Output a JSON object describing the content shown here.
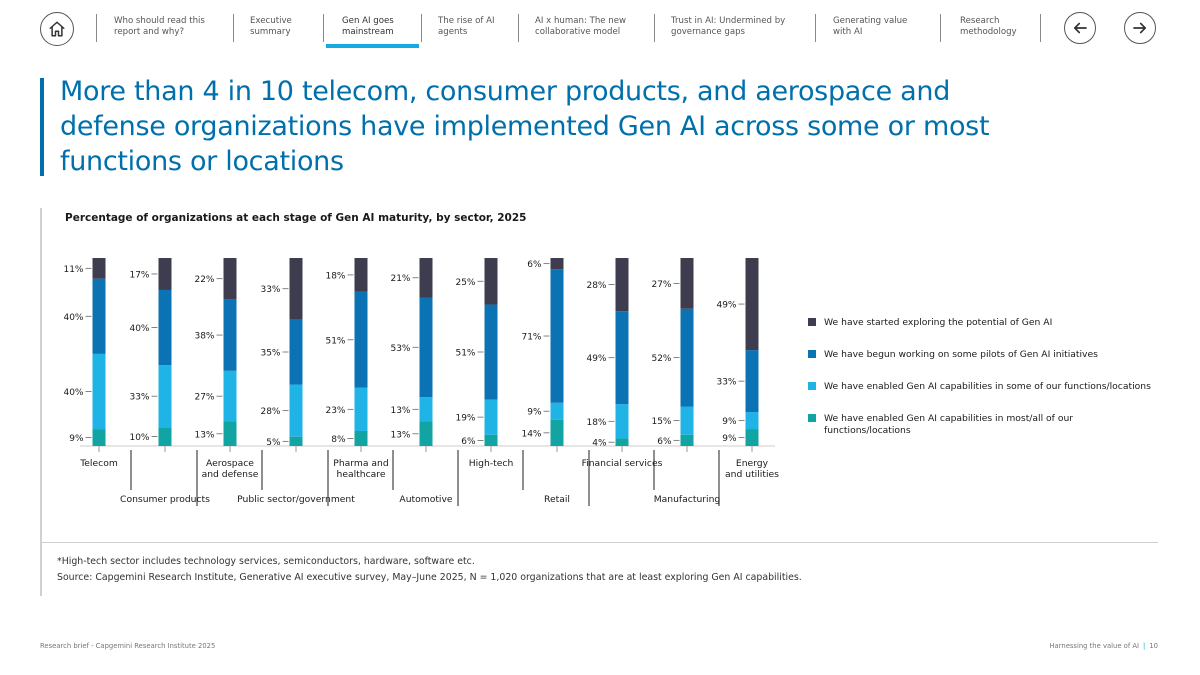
{
  "nav": {
    "items": [
      {
        "label": "Who should read this\nreport and why?"
      },
      {
        "label": "Executive\nsummary"
      },
      {
        "label": "Gen AI goes\nmainstream",
        "active": true
      },
      {
        "label": "The rise of AI\nagents"
      },
      {
        "label": "AI x human: The new\ncollaborative model"
      },
      {
        "label": "Trust in AI: Undermined by\ngovernance gaps"
      },
      {
        "label": "Generating value\nwith AI"
      },
      {
        "label": "Research\nmethodology"
      }
    ],
    "home_icon": "home-icon",
    "prev_icon": "arrow-left-icon",
    "next_icon": "arrow-right-icon",
    "accent": "#16aae0"
  },
  "headline": "More than 4 in 10 telecom, consumer products, and aerospace and defense organizations have implemented Gen AI across some or most functions or locations",
  "chart_data": {
    "type": "bar",
    "stacked": true,
    "title": "Percentage of organizations at each stage of Gen AI maturity, by sector, 2025",
    "categories": [
      "Telecom",
      "Consumer products",
      "Aerospace and defense",
      "Public sector/government",
      "Pharma and healthcare",
      "Automotive",
      "High-tech",
      "Retail",
      "Financial services",
      "Manufacturing",
      "Energy and utilities"
    ],
    "series": [
      {
        "name": "We have enabled Gen AI capabilities in most/all of our functions/locations",
        "color": "#12a3a3",
        "values": [
          9,
          10,
          13,
          5,
          8,
          13,
          6,
          14,
          4,
          6,
          9
        ]
      },
      {
        "name": "We have enabled Gen AI capabilities in some of our functions/locations",
        "color": "#1fb3e6",
        "values": [
          40,
          33,
          27,
          28,
          23,
          13,
          19,
          9,
          18,
          15,
          9
        ]
      },
      {
        "name": "We have begun working on some pilots of Gen AI initiatives",
        "color": "#0b72b3",
        "values": [
          40,
          40,
          38,
          35,
          51,
          53,
          51,
          71,
          49,
          52,
          33
        ]
      },
      {
        "name": "We have started exploring the potential of Gen AI",
        "color": "#3e3c4f",
        "values": [
          11,
          17,
          22,
          33,
          18,
          21,
          25,
          6,
          28,
          27,
          49
        ]
      }
    ],
    "value_labels": [
      [
        "9%",
        "40%",
        "40%",
        "11%"
      ],
      [
        "10%",
        "33%",
        "40%",
        "17%"
      ],
      [
        "13%",
        "27%",
        "38%",
        "22%"
      ],
      [
        "5%",
        "28%",
        "35%",
        "33%"
      ],
      [
        "8%",
        "23%",
        "51%",
        "18%"
      ],
      [
        "13%",
        "13%",
        "53%",
        "21%"
      ],
      [
        "6%",
        "19%",
        "51%",
        "25%"
      ],
      [
        "14%",
        "9%",
        "71%",
        "6%"
      ],
      [
        "4%",
        "18%",
        "49%",
        "28%"
      ],
      [
        "6%",
        "15%",
        "52%",
        "27%"
      ],
      [
        "9%",
        "9%",
        "33%",
        "49%"
      ]
    ],
    "category_labels": [
      [
        "Telecom"
      ],
      [
        "Consumer products"
      ],
      [
        "Aerospace",
        "and defense"
      ],
      [
        "Public sector/government"
      ],
      [
        "Pharma and",
        "healthcare"
      ],
      [
        "Automotive"
      ],
      [
        "High-tech"
      ],
      [
        "Retail"
      ],
      [
        "Financial services"
      ],
      [
        "Manufacturing"
      ],
      [
        "Energy",
        "and utilities"
      ]
    ],
    "legend": {
      "placement": "right",
      "order": [
        3,
        2,
        1,
        0
      ],
      "labels": [
        [
          "We have enabled Gen AI capabilities in most/all of our",
          "functions/locations"
        ],
        [
          "We have enabled Gen AI capabilities in some of our functions/locations"
        ],
        [
          "We have begun working on some pilots of Gen AI initiatives"
        ],
        [
          "We have started exploring the potential of Gen AI"
        ]
      ]
    },
    "ylim": [
      0,
      100
    ]
  },
  "notes": {
    "footnote": "*High-tech sector includes technology services, semiconductors, hardware, software etc.",
    "source": "Source: Capgemini Research Institute, Generative AI executive survey, May–June 2025, N = 1,020 organizations that are at least exploring Gen AI capabilities."
  },
  "footer": {
    "left": "Research brief - Capgemini Research Institute 2025",
    "right": "Harnessing the value of AI",
    "page": "10"
  }
}
